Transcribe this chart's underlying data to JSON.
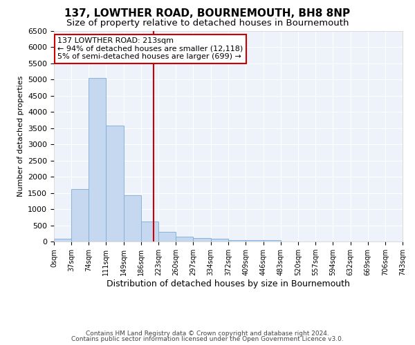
{
  "title": "137, LOWTHER ROAD, BOURNEMOUTH, BH8 8NP",
  "subtitle": "Size of property relative to detached houses in Bournemouth",
  "xlabel": "Distribution of detached houses by size in Bournemouth",
  "ylabel": "Number of detached properties",
  "bar_color": "#c5d8f0",
  "bar_edge_color": "#7aadd4",
  "background_color": "#eef2fb",
  "grid_color": "#ffffff",
  "bin_edges": [
    0,
    37,
    74,
    111,
    149,
    186,
    223,
    260,
    297,
    334,
    372,
    409,
    446,
    483,
    520,
    557,
    594,
    632,
    669,
    706,
    743
  ],
  "bar_heights": [
    75,
    1625,
    5060,
    3580,
    1420,
    625,
    290,
    155,
    100,
    80,
    45,
    50,
    50,
    0,
    0,
    0,
    0,
    0,
    0,
    0
  ],
  "ylim": [
    0,
    6500
  ],
  "property_size": 213,
  "vline_color": "#cc0000",
  "annotation_line1": "137 LOWTHER ROAD: 213sqm",
  "annotation_line2": "← 94% of detached houses are smaller (12,118)",
  "annotation_line3": "5% of semi-detached houses are larger (699) →",
  "annotation_box_color": "#ffffff",
  "annotation_box_edge": "#cc0000",
  "tick_labels": [
    "0sqm",
    "37sqm",
    "74sqm",
    "111sqm",
    "149sqm",
    "186sqm",
    "223sqm",
    "260sqm",
    "297sqm",
    "334sqm",
    "372sqm",
    "409sqm",
    "446sqm",
    "483sqm",
    "520sqm",
    "557sqm",
    "594sqm",
    "632sqm",
    "669sqm",
    "706sqm",
    "743sqm"
  ],
  "footer_line1": "Contains HM Land Registry data © Crown copyright and database right 2024.",
  "footer_line2": "Contains public sector information licensed under the Open Government Licence v3.0.",
  "title_fontsize": 11,
  "subtitle_fontsize": 9.5,
  "xlabel_fontsize": 9,
  "ylabel_fontsize": 8,
  "tick_fontsize": 7,
  "annotation_fontsize": 8,
  "footer_fontsize": 6.5
}
